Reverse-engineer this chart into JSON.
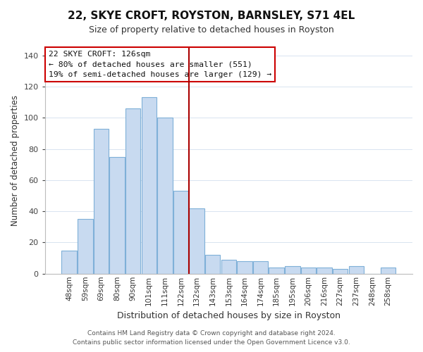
{
  "title": "22, SKYE CROFT, ROYSTON, BARNSLEY, S71 4EL",
  "subtitle": "Size of property relative to detached houses in Royston",
  "xlabel": "Distribution of detached houses by size in Royston",
  "ylabel": "Number of detached properties",
  "bar_labels": [
    "48sqm",
    "59sqm",
    "69sqm",
    "80sqm",
    "90sqm",
    "101sqm",
    "111sqm",
    "122sqm",
    "132sqm",
    "143sqm",
    "153sqm",
    "164sqm",
    "174sqm",
    "185sqm",
    "195sqm",
    "206sqm",
    "216sqm",
    "227sqm",
    "237sqm",
    "248sqm",
    "258sqm"
  ],
  "bar_values": [
    15,
    35,
    93,
    75,
    106,
    113,
    100,
    53,
    42,
    12,
    9,
    8,
    8,
    4,
    5,
    4,
    4,
    3,
    5,
    0,
    4
  ],
  "bar_color": "#c8daf0",
  "bar_edge_color": "#7fb0d8",
  "vline_index": 7.5,
  "vline_color": "#aa0000",
  "ylim": [
    0,
    145
  ],
  "yticks": [
    0,
    20,
    40,
    60,
    80,
    100,
    120,
    140
  ],
  "annotation_title": "22 SKYE CROFT: 126sqm",
  "annotation_line1": "← 80% of detached houses are smaller (551)",
  "annotation_line2": "19% of semi-detached houses are larger (129) →",
  "annotation_box_color": "#ffffff",
  "annotation_box_edge": "#cc0000",
  "footer_line1": "Contains HM Land Registry data © Crown copyright and database right 2024.",
  "footer_line2": "Contains public sector information licensed under the Open Government Licence v3.0.",
  "background_color": "#ffffff",
  "grid_color": "#d8e4f0",
  "title_fontsize": 11,
  "subtitle_fontsize": 9
}
